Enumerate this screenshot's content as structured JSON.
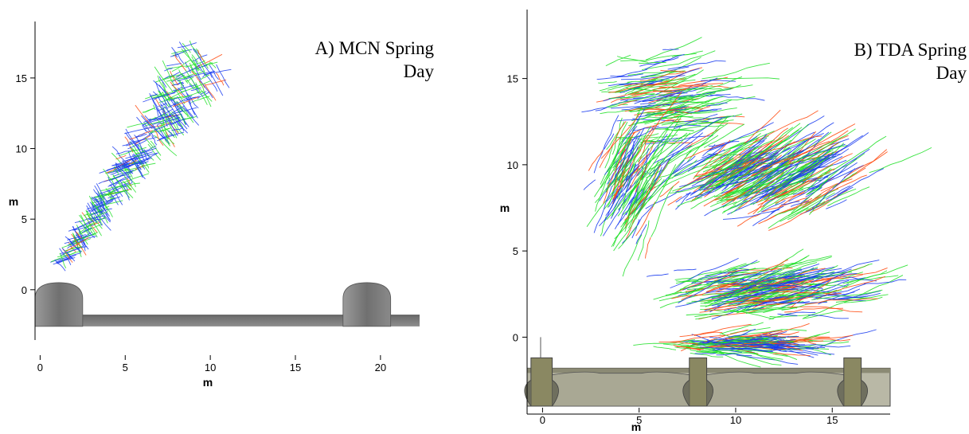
{
  "chart_data": [
    {
      "type": "scatter",
      "title_line1": "A) MCN Spring",
      "title_line2": "Day",
      "xlabel": "m",
      "ylabel": "m",
      "xlim": [
        -0.3,
        22.3
      ],
      "ylim": [
        -3.0,
        19.0
      ],
      "xticks": [
        "0",
        "5",
        "10",
        "15",
        "20"
      ],
      "yticks": [
        "0",
        "5",
        "10",
        "15"
      ],
      "series_colors": [
        "#ff4a10",
        "#22e02a",
        "#1a3cf0"
      ],
      "track_region": {
        "apex": [
          1.1,
          1.6
        ],
        "upper_edge": [
          [
            1.1,
            1.6
          ],
          [
            5.0,
            9.0
          ],
          [
            10.0,
            18.8
          ],
          [
            11.0,
            18.6
          ]
        ],
        "outer_edge": [
          [
            11.0,
            18.6
          ],
          [
            13.8,
            16.2
          ],
          [
            1.1,
            1.6
          ]
        ],
        "count": 420
      },
      "structures": [
        {
          "kind": "dome",
          "x0": -0.3,
          "x1": 2.5,
          "peak": 0.5
        },
        {
          "kind": "dome",
          "x0": 17.8,
          "x1": 20.6,
          "peak": 0.5
        },
        {
          "kind": "channel",
          "x0": 2.0,
          "x1": 22.3,
          "top": -1.8,
          "bottom": -2.6
        }
      ]
    },
    {
      "type": "scatter",
      "title_line1": "B) TDA Spring",
      "title_line2": "Day",
      "xlabel": "m",
      "ylabel": "m",
      "xlim": [
        -0.8,
        18.0
      ],
      "ylim": [
        -4.0,
        19.0
      ],
      "xticks": [
        "0",
        "5",
        "10",
        "15"
      ],
      "yticks": [
        "0",
        "5",
        "10",
        "15"
      ],
      "series_colors": [
        "#ff4a10",
        "#22e02a",
        "#1a3cf0"
      ],
      "track_clusters": [
        {
          "cx": 5.5,
          "cy": 13.5,
          "rx": 4.2,
          "ry": 3.8,
          "dir": 0.15,
          "count": 170
        },
        {
          "cx": 10.5,
          "cy": 8.8,
          "rx": 6.5,
          "ry": 3.0,
          "dir": 0.55,
          "count": 380
        },
        {
          "cx": 4.0,
          "cy": 8.0,
          "rx": 2.2,
          "ry": 5.0,
          "dir": 1.1,
          "count": 140
        },
        {
          "cx": 10.5,
          "cy": 2.5,
          "rx": 7.0,
          "ry": 2.0,
          "dir": 0.25,
          "count": 260
        },
        {
          "cx": 9.5,
          "cy": -0.4,
          "rx": 5.5,
          "ry": 0.8,
          "dir": 0.02,
          "count": 150
        }
      ],
      "structures": [
        {
          "kind": "wall",
          "x0": -0.8,
          "x1": 18.0,
          "top": -1.8,
          "bottom": -4.0
        },
        {
          "kind": "pier",
          "x0": -0.6,
          "x1": 0.5,
          "top": -1.2
        },
        {
          "kind": "pier",
          "x0": 7.6,
          "x1": 8.5,
          "top": -1.2
        },
        {
          "kind": "pier",
          "x0": 15.6,
          "x1": 16.5,
          "top": -1.2
        }
      ]
    }
  ]
}
